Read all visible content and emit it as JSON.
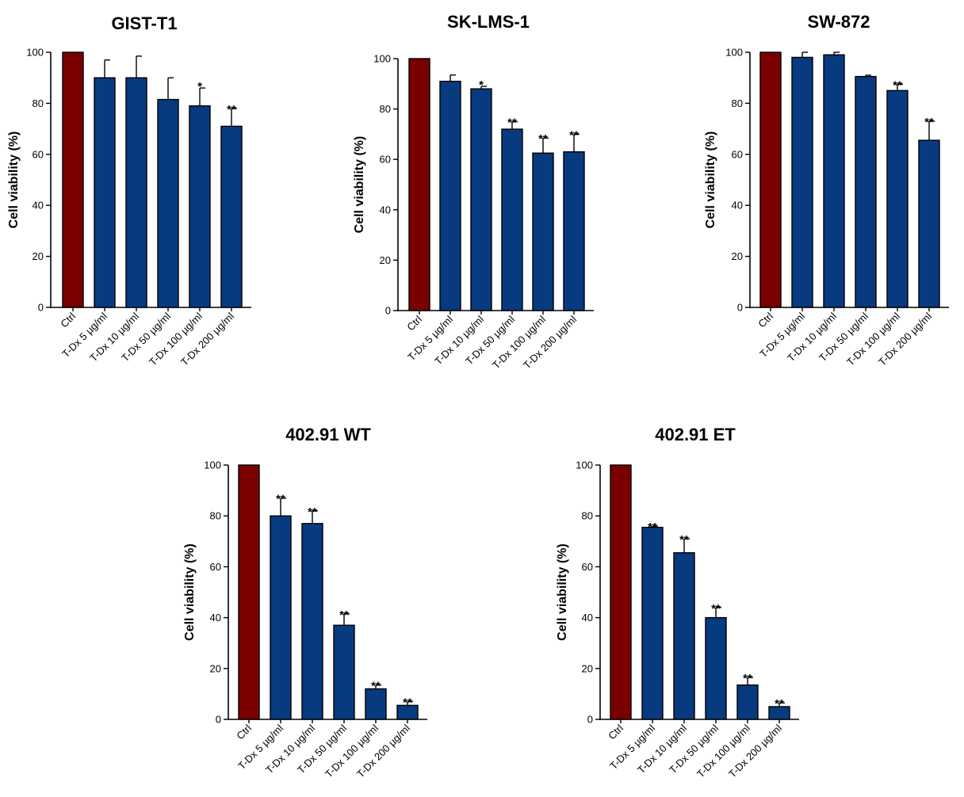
{
  "colors": {
    "control": "#7a0000",
    "treated": "#083a80",
    "axis": "#000000"
  },
  "chart_data": [
    {
      "type": "bar",
      "title": "GIST-T1",
      "ylabel": "Cell viability (%)",
      "ylim": [
        0,
        100
      ],
      "yticks": [
        "0",
        "20",
        "40",
        "60",
        "80",
        "100"
      ],
      "categories": [
        "Ctrl",
        "T-Dx 5 µg/ml",
        "T-Dx 10 µg/ml",
        "T-Dx 50 µg/ml",
        "T-Dx 100 µg/ml",
        "T-Dx 200 µg/ml"
      ],
      "values": [
        100,
        90,
        90,
        81.5,
        79,
        71
      ],
      "errors": [
        0,
        7,
        8.5,
        8.5,
        7,
        7
      ],
      "significance": [
        "",
        "",
        "",
        "",
        "*",
        "**"
      ]
    },
    {
      "type": "bar",
      "title": "SK-LMS-1",
      "ylabel": "Cell viability (%)",
      "ylim": [
        0,
        100
      ],
      "yticks": [
        "0",
        "20",
        "40",
        "60",
        "80",
        "100"
      ],
      "categories": [
        "Ctrl",
        "T-Dx 5 µg/ml",
        "T-Dx 10 µg/ml",
        "T-Dx 50 µg/ml",
        "T-Dx 100 µg/ml",
        "T-Dx 200 µg/ml"
      ],
      "values": [
        100,
        91,
        88,
        72,
        62.5,
        63
      ],
      "errors": [
        0,
        2.5,
        1,
        3,
        6,
        7
      ],
      "significance": [
        "",
        "",
        "*",
        "**",
        "**",
        "**"
      ]
    },
    {
      "type": "bar",
      "title": "SW-872",
      "ylabel": "Cell viability (%)",
      "ylim": [
        0,
        100
      ],
      "yticks": [
        "0",
        "20",
        "40",
        "60",
        "80",
        "100"
      ],
      "categories": [
        "Ctrl",
        "T-Dx 5 µg/ml",
        "T-Dx 10 µg/ml",
        "T-Dx 50 µg/ml",
        "T-Dx 100 µg/ml",
        "T-Dx 200 µg/ml"
      ],
      "values": [
        100,
        98,
        99,
        90.5,
        85,
        65.5
      ],
      "errors": [
        0,
        2,
        1,
        0.5,
        2.5,
        7.5
      ],
      "significance": [
        "",
        "",
        "",
        "",
        "**",
        "**"
      ]
    },
    {
      "type": "bar",
      "title": "402.91 WT",
      "ylabel": "Cell viability (%)",
      "ylim": [
        0,
        100
      ],
      "yticks": [
        "0",
        "20",
        "40",
        "60",
        "80",
        "100"
      ],
      "categories": [
        "Ctrl",
        "T-Dx 5 µg/ml",
        "T-Dx 10 µg/ml",
        "T-Dx 50 µg/ml",
        "T-Dx 100 µg/ml",
        "T-Dx 200 µg/ml"
      ],
      "values": [
        100,
        80,
        77,
        37,
        12,
        5.5
      ],
      "errors": [
        0,
        7,
        5,
        4.5,
        1.5,
        1.5
      ],
      "significance": [
        "",
        "**",
        "**",
        "**",
        "**",
        "**"
      ]
    },
    {
      "type": "bar",
      "title": "402.91 ET",
      "ylabel": "Cell viability (%)",
      "ylim": [
        0,
        100
      ],
      "yticks": [
        "0",
        "20",
        "40",
        "60",
        "80",
        "100"
      ],
      "categories": [
        "Ctrl",
        "T-Dx 5 µg/ml",
        "T-Dx 10 µg/ml",
        "T-Dx 50 µg/ml",
        "T-Dx 100 µg/ml",
        "T-Dx 200 µg/ml"
      ],
      "values": [
        100,
        75.5,
        65.5,
        40,
        13.5,
        5
      ],
      "errors": [
        0,
        0.5,
        5.5,
        4,
        3,
        1.5
      ],
      "significance": [
        "",
        "**",
        "**",
        "**",
        "**",
        "**"
      ]
    }
  ]
}
